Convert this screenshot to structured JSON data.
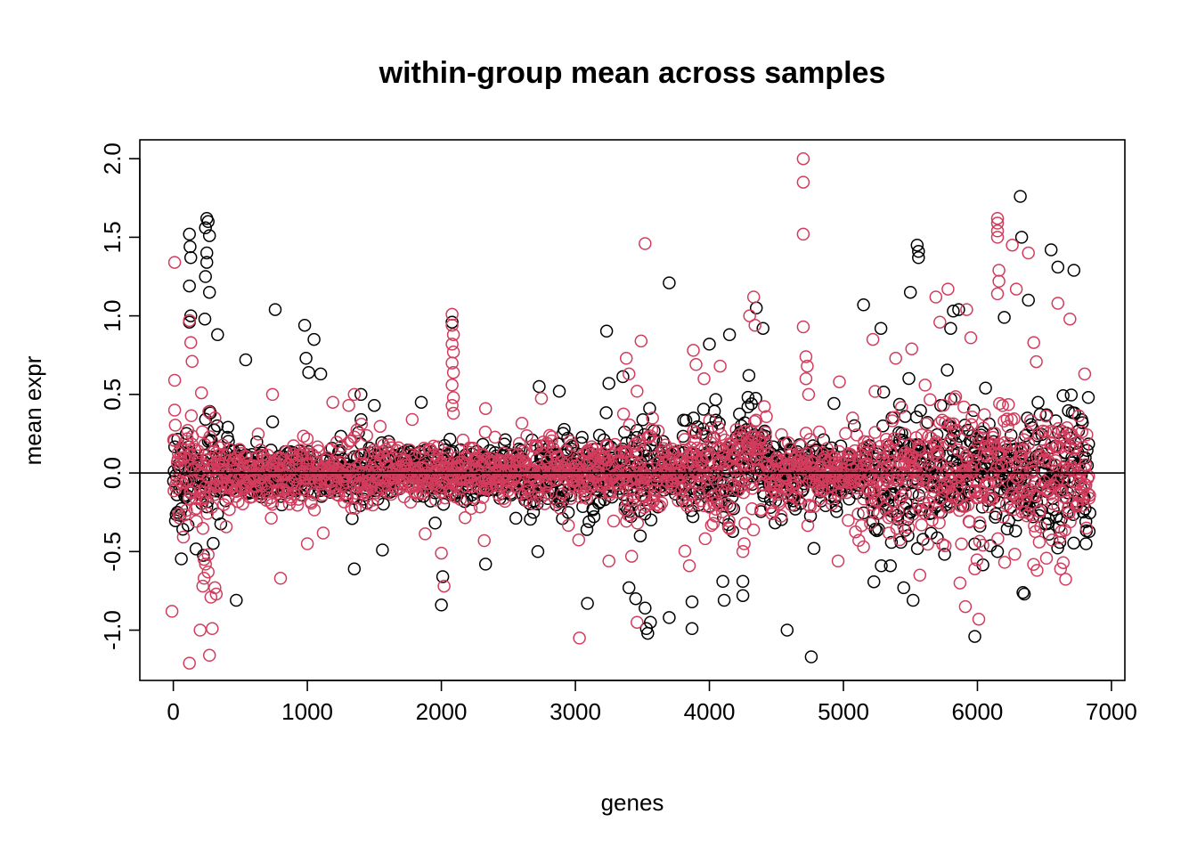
{
  "chart_data": {
    "type": "scatter",
    "title": "within-group mean across samples",
    "xlabel": "genes",
    "ylabel": "mean expr",
    "xlim": [
      -250,
      7100
    ],
    "ylim": [
      -1.32,
      2.12
    ],
    "x_ticks": [
      0,
      1000,
      2000,
      3000,
      4000,
      5000,
      6000,
      7000
    ],
    "y_ticks": [
      -1.0,
      -0.5,
      0.0,
      0.5,
      1.0,
      1.5,
      2.0
    ],
    "x_tick_labels": [
      "0",
      "1000",
      "2000",
      "3000",
      "4000",
      "5000",
      "6000",
      "7000"
    ],
    "y_tick_labels": [
      "-1.0",
      "-0.5",
      "0.0",
      "0.5",
      "1.0",
      "1.5",
      "2.0"
    ],
    "hline": 0,
    "marker": "open-circle",
    "grid": false,
    "legend": "none",
    "n_genes": 6840,
    "series": [
      {
        "color": "#000000",
        "outliers": [
          [
            250,
            1.62
          ],
          [
            260,
            1.6
          ],
          [
            240,
            1.56
          ],
          [
            270,
            1.51
          ],
          [
            120,
            1.52
          ],
          [
            125,
            1.44
          ],
          [
            130,
            1.37
          ],
          [
            250,
            1.4
          ],
          [
            250,
            1.34
          ],
          [
            240,
            1.25
          ],
          [
            270,
            1.15
          ],
          [
            120,
            1.19
          ],
          [
            130,
            1.0
          ],
          [
            235,
            0.98
          ],
          [
            330,
            0.88
          ],
          [
            120,
            0.96
          ],
          [
            540,
            0.72
          ],
          [
            760,
            1.04
          ],
          [
            980,
            0.94
          ],
          [
            1050,
            0.85
          ],
          [
            990,
            0.73
          ],
          [
            1010,
            0.64
          ],
          [
            1100,
            0.63
          ],
          [
            1400,
            0.5
          ],
          [
            1500,
            0.43
          ],
          [
            1850,
            0.45
          ],
          [
            2080,
            0.96
          ],
          [
            2730,
            0.55
          ],
          [
            2880,
            0.52
          ],
          [
            3250,
            0.57
          ],
          [
            3700,
            1.21
          ],
          [
            4000,
            0.82
          ],
          [
            4150,
            0.88
          ],
          [
            4350,
            1.05
          ],
          [
            4400,
            0.92
          ],
          [
            5150,
            1.07
          ],
          [
            5280,
            0.92
          ],
          [
            5500,
            1.15
          ],
          [
            5550,
            1.45
          ],
          [
            5560,
            1.41
          ],
          [
            5560,
            1.37
          ],
          [
            5800,
            0.92
          ],
          [
            5820,
            1.03
          ],
          [
            5860,
            1.04
          ],
          [
            6200,
            0.99
          ],
          [
            6320,
            1.76
          ],
          [
            6330,
            1.5
          ],
          [
            6380,
            1.1
          ],
          [
            6550,
            1.42
          ],
          [
            6600,
            1.31
          ],
          [
            6720,
            1.29
          ],
          [
            470,
            -0.81
          ],
          [
            1350,
            -0.61
          ],
          [
            1560,
            -0.49
          ],
          [
            2010,
            -0.66
          ],
          [
            2000,
            -0.84
          ],
          [
            2330,
            -0.58
          ],
          [
            2720,
            -0.5
          ],
          [
            3090,
            -0.83
          ],
          [
            3400,
            -0.73
          ],
          [
            3450,
            -0.8
          ],
          [
            3530,
            -0.99
          ],
          [
            3540,
            -1.02
          ],
          [
            3560,
            -0.95
          ],
          [
            3520,
            -0.86
          ],
          [
            3700,
            -0.92
          ],
          [
            3870,
            -0.82
          ],
          [
            3870,
            -0.99
          ],
          [
            4100,
            -0.69
          ],
          [
            4110,
            -0.81
          ],
          [
            4250,
            -0.69
          ],
          [
            4250,
            -0.78
          ],
          [
            4580,
            -1.0
          ],
          [
            4760,
            -1.17
          ],
          [
            4780,
            -0.48
          ],
          [
            5450,
            -0.73
          ],
          [
            5520,
            -0.81
          ],
          [
            5350,
            -0.59
          ],
          [
            5980,
            -1.04
          ],
          [
            6340,
            -0.76
          ],
          [
            6350,
            -0.77
          ],
          [
            6150,
            -0.5
          ],
          [
            6810,
            -0.45
          ]
        ]
      },
      {
        "color": "#d23c5c",
        "outliers": [
          [
            10,
            1.34
          ],
          [
            10,
            0.59
          ],
          [
            10,
            0.4
          ],
          [
            120,
            0.97
          ],
          [
            130,
            0.83
          ],
          [
            140,
            0.71
          ],
          [
            210,
            0.51
          ],
          [
            310,
            0.35
          ],
          [
            740,
            0.5
          ],
          [
            1350,
            0.5
          ],
          [
            1190,
            0.45
          ],
          [
            2080,
            1.01
          ],
          [
            2080,
            0.94
          ],
          [
            2090,
            0.88
          ],
          [
            2080,
            0.82
          ],
          [
            2090,
            0.77
          ],
          [
            2080,
            0.7
          ],
          [
            2090,
            0.64
          ],
          [
            2080,
            0.56
          ],
          [
            2090,
            0.48
          ],
          [
            2080,
            0.43
          ],
          [
            2090,
            0.38
          ],
          [
            2330,
            0.41
          ],
          [
            3380,
            0.73
          ],
          [
            3400,
            0.63
          ],
          [
            3460,
            0.52
          ],
          [
            3520,
            1.46
          ],
          [
            3490,
            0.84
          ],
          [
            3880,
            0.78
          ],
          [
            3900,
            0.69
          ],
          [
            3960,
            0.6
          ],
          [
            4080,
            0.68
          ],
          [
            4300,
            1.0
          ],
          [
            4330,
            1.12
          ],
          [
            4340,
            0.94
          ],
          [
            4700,
            2.0
          ],
          [
            4700,
            1.85
          ],
          [
            4700,
            1.52
          ],
          [
            4700,
            0.93
          ],
          [
            4720,
            0.74
          ],
          [
            4730,
            0.68
          ],
          [
            4720,
            0.6
          ],
          [
            4740,
            0.5
          ],
          [
            4970,
            0.58
          ],
          [
            5220,
            0.85
          ],
          [
            5390,
            0.73
          ],
          [
            5510,
            0.79
          ],
          [
            5690,
            1.12
          ],
          [
            5780,
            1.17
          ],
          [
            5720,
            0.96
          ],
          [
            5920,
            1.04
          ],
          [
            5950,
            0.86
          ],
          [
            6150,
            1.62
          ],
          [
            6150,
            1.59
          ],
          [
            6150,
            1.54
          ],
          [
            6150,
            1.5
          ],
          [
            6160,
            1.29
          ],
          [
            6160,
            1.22
          ],
          [
            6150,
            1.14
          ],
          [
            6260,
            1.45
          ],
          [
            6290,
            1.17
          ],
          [
            6380,
            1.4
          ],
          [
            6420,
            0.83
          ],
          [
            6600,
            1.08
          ],
          [
            6690,
            0.98
          ],
          [
            6800,
            0.63
          ],
          [
            -10,
            -0.88
          ],
          [
            120,
            -1.21
          ],
          [
            200,
            -1.0
          ],
          [
            270,
            -1.16
          ],
          [
            290,
            -0.99
          ],
          [
            280,
            -0.79
          ],
          [
            320,
            -0.77
          ],
          [
            310,
            -0.73
          ],
          [
            220,
            -0.72
          ],
          [
            230,
            -0.67
          ],
          [
            260,
            -0.63
          ],
          [
            240,
            -0.58
          ],
          [
            230,
            -0.55
          ],
          [
            260,
            -0.52
          ],
          [
            800,
            -0.67
          ],
          [
            1000,
            -0.45
          ],
          [
            2000,
            -0.51
          ],
          [
            2020,
            -0.72
          ],
          [
            2320,
            -0.43
          ],
          [
            3030,
            -1.05
          ],
          [
            3250,
            -0.56
          ],
          [
            3460,
            -0.95
          ],
          [
            3420,
            -0.53
          ],
          [
            3850,
            -0.59
          ],
          [
            4250,
            -0.5
          ],
          [
            4260,
            -0.45
          ],
          [
            4960,
            -0.56
          ],
          [
            5150,
            -0.47
          ],
          [
            5570,
            -0.65
          ],
          [
            5870,
            -0.7
          ],
          [
            5910,
            -0.85
          ],
          [
            6010,
            -0.93
          ],
          [
            5980,
            -0.61
          ],
          [
            6620,
            -0.61
          ],
          [
            6640,
            -0.57
          ]
        ]
      }
    ]
  }
}
